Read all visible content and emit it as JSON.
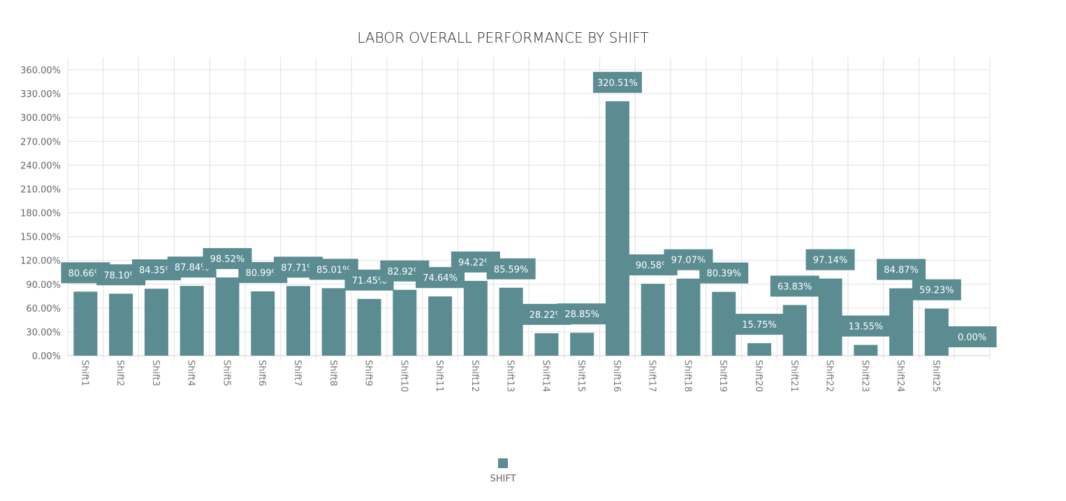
{
  "chart_data": {
    "type": "bar",
    "title": "LABOR OVERALL PERFORMANCE BY SHIFT",
    "xlabel": "",
    "ylabel": "",
    "ylim": [
      0,
      360
    ],
    "y_ticks": [
      "0.00%",
      "30.00%",
      "60.00%",
      "90.00%",
      "120.00%",
      "150.00%",
      "180.00%",
      "210.00%",
      "240.00%",
      "270.00%",
      "300.00%",
      "330.00%",
      "360.00%"
    ],
    "grid": true,
    "legend_position": "bottom",
    "categories": [
      "Shift1",
      "Shift2",
      "Shift3",
      "Shift4",
      "Shift5",
      "Shift6",
      "Shift7",
      "Shift8",
      "Shift9",
      "Shift10",
      "Shift11",
      "Shift12",
      "Shift13",
      "Shift14",
      "Shift15",
      "Shift16",
      "Shift17",
      "Shift18",
      "Shift19",
      "Shift20",
      "Shift21",
      "Shift22",
      "Shift23",
      "Shift24",
      "Shift25",
      ""
    ],
    "series": [
      {
        "name": "SHIFT",
        "color": "#5b8c91",
        "values": [
          80.66,
          78.1,
          84.35,
          87.84,
          98.52,
          80.99,
          87.71,
          85.01,
          71.45,
          82.92,
          74.64,
          94.22,
          85.59,
          28.22,
          28.85,
          320.51,
          90.58,
          97.07,
          80.39,
          15.75,
          63.83,
          97.14,
          13.55,
          84.87,
          59.23,
          0.0
        ],
        "labels": [
          "80.66%",
          "78.10%",
          "84.35%",
          "87.84%",
          "98.52%",
          "80.99%",
          "87.71%",
          "85.01%",
          "71.45%",
          "82.92%",
          "74.64%",
          "94.22%",
          "85.59%",
          "28.22%",
          "28.85%",
          "320.51%",
          "90.58%",
          "97.07%",
          "80.39%",
          "15.75%",
          "63.83%",
          "97.14%",
          "13.55%",
          "84.87%",
          "59.23%",
          "0.00%"
        ]
      }
    ]
  }
}
